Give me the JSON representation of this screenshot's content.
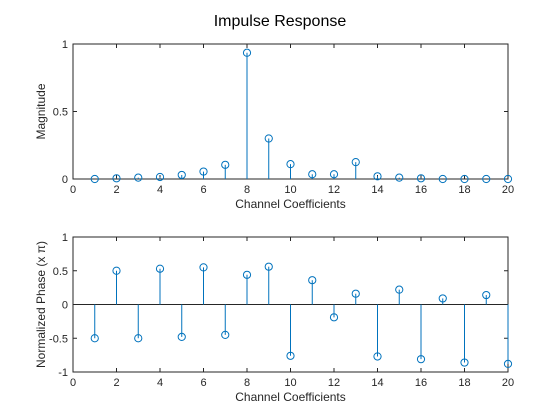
{
  "figure_title": "Impulse Response",
  "colors": {
    "stem": "#0072bd",
    "axes": "#262626",
    "background": "#ffffff"
  },
  "chart_data": [
    {
      "type": "stem",
      "title": "",
      "xlabel": "Channel Coefficients",
      "ylabel": "Magnitude",
      "xlim": [
        0,
        20
      ],
      "ylim": [
        0,
        1
      ],
      "xticks": [
        "0",
        "2",
        "4",
        "6",
        "8",
        "10",
        "12",
        "14",
        "16",
        "18",
        "20"
      ],
      "yticks": [
        "0",
        "0.5",
        "1"
      ],
      "grid": false,
      "marker": "circle",
      "x": [
        1,
        2,
        3,
        4,
        5,
        6,
        7,
        8,
        9,
        10,
        11,
        12,
        13,
        14,
        15,
        16,
        17,
        18,
        19,
        20
      ],
      "values": [
        0.0,
        0.005,
        0.01,
        0.015,
        0.03,
        0.055,
        0.105,
        0.935,
        0.3,
        0.11,
        0.035,
        0.035,
        0.125,
        0.02,
        0.01,
        0.005,
        0.0,
        0.0,
        0.0,
        0.0
      ]
    },
    {
      "type": "stem",
      "title": "",
      "xlabel": "Channel Coefficients",
      "ylabel": "Normalized Phase (x π)",
      "xlim": [
        0,
        20
      ],
      "ylim": [
        -1,
        1
      ],
      "xticks": [
        "0",
        "2",
        "4",
        "6",
        "8",
        "10",
        "12",
        "14",
        "16",
        "18",
        "20"
      ],
      "yticks": [
        "-1",
        "-0.5",
        "0",
        "0.5",
        "1"
      ],
      "grid": false,
      "marker": "circle",
      "baseline": 0,
      "x": [
        1,
        2,
        3,
        4,
        5,
        6,
        7,
        8,
        9,
        10,
        11,
        12,
        13,
        14,
        15,
        16,
        17,
        18,
        19,
        20
      ],
      "values": [
        -0.5,
        0.5,
        -0.5,
        0.53,
        -0.48,
        0.55,
        -0.45,
        0.44,
        0.56,
        -0.76,
        0.36,
        -0.19,
        0.16,
        -0.77,
        0.22,
        -0.81,
        0.09,
        -0.86,
        0.14,
        -0.88
      ]
    }
  ]
}
